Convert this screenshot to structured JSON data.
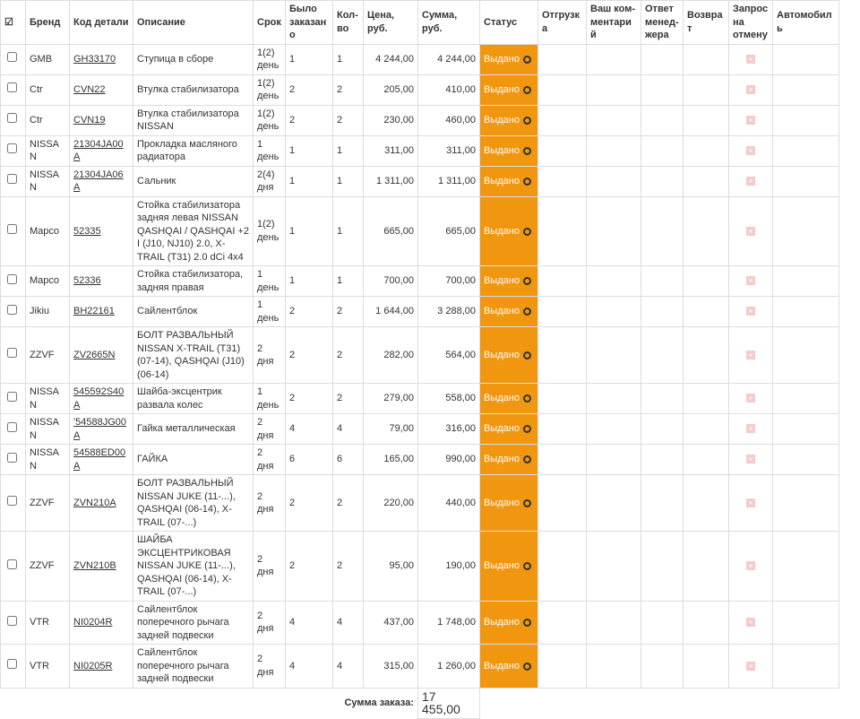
{
  "table": {
    "headers": [
      "Бренд",
      "Код детали",
      "Описание",
      "Срок",
      "Было заказано",
      "Кол-во",
      "Цена, руб.",
      "Сумма, руб.",
      "Статус",
      "Отгрузка",
      "Ваш ком- ментарий",
      "Ответ менед- жера",
      "Возврат",
      "Запрос на отмену",
      "Автомобиль"
    ],
    "rows": [
      [
        "GMB",
        "GH33170",
        "Ступица в сборе",
        "1(2) день",
        "1",
        "1",
        "4 244,00",
        "4 244,00",
        "Выдано"
      ],
      [
        "Ctr",
        "CVN22",
        "Втулка стабилизатора",
        "1(2) день",
        "2",
        "2",
        "205,00",
        "410,00",
        "Выдано"
      ],
      [
        "Ctr",
        "CVN19",
        "Втулка стабилизатора NISSAN",
        "1(2) день",
        "2",
        "2",
        "230,00",
        "460,00",
        "Выдано"
      ],
      [
        "NISSAN",
        "21304JA00A",
        "Прокладка масляного радиатора",
        "1 день",
        "1",
        "1",
        "311,00",
        "311,00",
        "Выдано"
      ],
      [
        "NISSAN",
        "21304JA06A",
        "Сальник",
        "2(4) дня",
        "1",
        "1",
        "1 311,00",
        "1 311,00",
        "Выдано"
      ],
      [
        "Mapco",
        "52335",
        "Стойка стабилизатора задняя левая NISSAN QASHQAI / QASHQAI +2 I (J10, NJ10) 2.0, X-TRAIL (T31) 2.0 dCi 4x4",
        "1(2) день",
        "1",
        "1",
        "665,00",
        "665,00",
        "Выдано"
      ],
      [
        "Mapco",
        "52336",
        "Стойка стабилизатора, задняя правая",
        "1 день",
        "1",
        "1",
        "700,00",
        "700,00",
        "Выдано"
      ],
      [
        "Jikiu",
        "BH22161",
        "Сайлентблок",
        "1 день",
        "2",
        "2",
        "1 644,00",
        "3 288,00",
        "Выдано"
      ],
      [
        "ZZVF",
        "ZV2665N",
        "БОЛТ РАЗВАЛЬНЫЙ NISSAN X-TRAIL (T31) (07-14), QASHQAI (J10) (06-14)",
        "2 дня",
        "2",
        "2",
        "282,00",
        "564,00",
        "Выдано"
      ],
      [
        "NISSAN",
        "545592S40A",
        "Шайба-эксцентрик развала колес",
        "1 день",
        "2",
        "2",
        "279,00",
        "558,00",
        "Выдано"
      ],
      [
        "NISSAN",
        "'54588JG00A",
        "Гайка металлическая",
        "2 дня",
        "4",
        "4",
        "79,00",
        "316,00",
        "Выдано"
      ],
      [
        "NISSAN",
        "54588ED00A",
        "ГАЙКА",
        "2 дня",
        "6",
        "6",
        "165,00",
        "990,00",
        "Выдано"
      ],
      [
        "ZZVF",
        "ZVN210A",
        "БОЛТ РАЗВАЛЬНЫЙ NISSAN JUKE (11-...), QASHQAI (06-14), X-TRAIL (07-...)",
        "2 дня",
        "2",
        "2",
        "220,00",
        "440,00",
        "Выдано"
      ],
      [
        "ZZVF",
        "ZVN210B",
        "ШАЙБА ЭКСЦЕНТРИКОВАЯ NISSAN JUKE (11-...), QASHQAI (06-14), X-TRAIL (07-...)",
        "2 дня",
        "2",
        "2",
        "95,00",
        "190,00",
        "Выдано"
      ],
      [
        "VTR",
        "NI0204R",
        "Сайлентблок поперечного рычага задней подвески",
        "2 дня",
        "4",
        "4",
        "437,00",
        "1 748,00",
        "Выдано"
      ],
      [
        "VTR",
        "NI0205R",
        "Сайлентблок поперечного рычага задней подвески",
        "2 дня",
        "4",
        "4",
        "315,00",
        "1 260,00",
        "Выдано"
      ]
    ],
    "total_label": "Сумма заказа:",
    "total": "17 455,00"
  }
}
